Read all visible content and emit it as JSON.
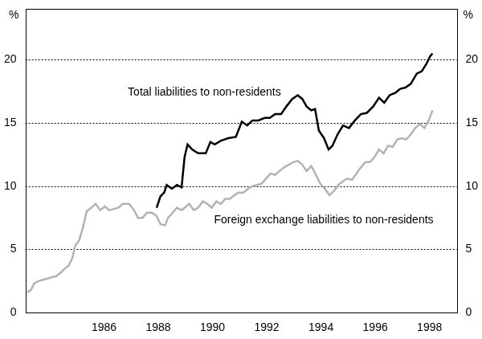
{
  "chart_data": {
    "type": "line",
    "ylabel": "%",
    "y2label": "%",
    "xlim": [
      1983.1,
      1999
    ],
    "xticks": [
      1986,
      1988,
      1990,
      1992,
      1994,
      1996,
      1998
    ],
    "ylim": [
      0,
      24
    ],
    "yticks": [
      0,
      5,
      10,
      15,
      20
    ],
    "y2lim": [
      0,
      24
    ],
    "y2ticks": [
      0,
      5,
      10,
      15,
      20
    ],
    "grid": true,
    "series": [
      {
        "name": "Total liabilities to non-residents",
        "color": "#000000",
        "x": [
          1987.94,
          1988.08,
          1988.22,
          1988.31,
          1988.5,
          1988.69,
          1988.86,
          1988.97,
          1989.08,
          1989.25,
          1989.47,
          1989.75,
          1989.92,
          1990.08,
          1990.31,
          1990.58,
          1990.86,
          1991.08,
          1991.28,
          1991.47,
          1991.69,
          1991.92,
          1992.11,
          1992.31,
          1992.53,
          1992.72,
          1992.94,
          1993.14,
          1993.31,
          1993.47,
          1993.64,
          1993.78,
          1993.92,
          1994.11,
          1994.28,
          1994.42,
          1994.61,
          1994.81,
          1995.03,
          1995.25,
          1995.47,
          1995.69,
          1995.92,
          1996.14,
          1996.33,
          1996.53,
          1996.75,
          1996.92,
          1997.11,
          1997.31,
          1997.53,
          1997.72,
          1997.89,
          1998.03,
          1998.11
        ],
        "values": [
          8.3,
          9.2,
          9.5,
          10.1,
          9.8,
          10.1,
          9.9,
          12.3,
          13.3,
          12.9,
          12.6,
          12.6,
          13.5,
          13.3,
          13.6,
          13.8,
          13.9,
          15.1,
          14.8,
          15.2,
          15.2,
          15.4,
          15.4,
          15.7,
          15.7,
          16.3,
          16.9,
          17.2,
          16.9,
          16.3,
          16.0,
          16.1,
          14.4,
          13.8,
          12.9,
          13.2,
          14.1,
          14.8,
          14.6,
          15.2,
          15.7,
          15.8,
          16.3,
          17.0,
          16.6,
          17.2,
          17.4,
          17.7,
          17.8,
          18.1,
          18.9,
          19.1,
          19.7,
          20.3,
          20.5
        ]
      },
      {
        "name": "Foreign exchange liabilities to non-residents",
        "color": "#b3b3b3",
        "x": [
          1983.17,
          1983.31,
          1983.42,
          1983.58,
          1983.75,
          1983.92,
          1984.08,
          1984.25,
          1984.42,
          1984.56,
          1984.69,
          1984.83,
          1984.94,
          1985.08,
          1985.22,
          1985.36,
          1985.53,
          1985.69,
          1985.86,
          1986.03,
          1986.19,
          1986.36,
          1986.53,
          1986.69,
          1986.92,
          1987.11,
          1987.25,
          1987.42,
          1987.58,
          1987.75,
          1987.92,
          1988.08,
          1988.25,
          1988.36,
          1988.53,
          1988.69,
          1988.86,
          1989.03,
          1989.14,
          1989.31,
          1989.47,
          1989.64,
          1989.81,
          1989.97,
          1990.14,
          1990.31,
          1990.47,
          1990.64,
          1990.81,
          1990.97,
          1991.14,
          1991.31,
          1991.47,
          1991.64,
          1991.81,
          1991.97,
          1992.14,
          1992.31,
          1992.47,
          1992.64,
          1992.81,
          1992.97,
          1993.14,
          1993.31,
          1993.47,
          1993.64,
          1993.81,
          1993.97,
          1994.14,
          1994.31,
          1994.47,
          1994.64,
          1994.81,
          1994.97,
          1995.14,
          1995.31,
          1995.47,
          1995.64,
          1995.81,
          1995.97,
          1996.14,
          1996.31,
          1996.47,
          1996.64,
          1996.81,
          1996.97,
          1997.14,
          1997.31,
          1997.47,
          1997.64,
          1997.81,
          1997.97,
          1998.11
        ],
        "values": [
          1.6,
          1.8,
          2.3,
          2.5,
          2.6,
          2.7,
          2.8,
          2.9,
          3.2,
          3.5,
          3.7,
          4.3,
          5.3,
          5.7,
          6.7,
          8.0,
          8.3,
          8.6,
          8.1,
          8.4,
          8.1,
          8.2,
          8.3,
          8.6,
          8.6,
          8.1,
          7.5,
          7.5,
          7.9,
          7.9,
          7.7,
          7.0,
          6.9,
          7.5,
          7.9,
          8.3,
          8.1,
          8.4,
          8.6,
          8.1,
          8.3,
          8.8,
          8.6,
          8.3,
          8.8,
          8.6,
          9.0,
          9.0,
          9.3,
          9.5,
          9.5,
          9.8,
          10.0,
          10.1,
          10.2,
          10.6,
          11.0,
          10.9,
          11.2,
          11.5,
          11.7,
          11.9,
          12.0,
          11.7,
          11.2,
          11.6,
          10.9,
          10.2,
          9.8,
          9.3,
          9.6,
          10.1,
          10.4,
          10.6,
          10.5,
          11.0,
          11.5,
          11.9,
          11.9,
          12.3,
          12.9,
          12.6,
          13.2,
          13.1,
          13.7,
          13.8,
          13.7,
          14.1,
          14.6,
          14.9,
          14.6,
          15.2,
          16.0
        ]
      }
    ],
    "annotations": [
      {
        "text": "Total liabilities to non-residents",
        "x": 1989.7,
        "y": 17.4
      },
      {
        "text": "Foreign exchange liabilities to non-residents",
        "x": 1994.1,
        "y": 7.3
      }
    ]
  }
}
